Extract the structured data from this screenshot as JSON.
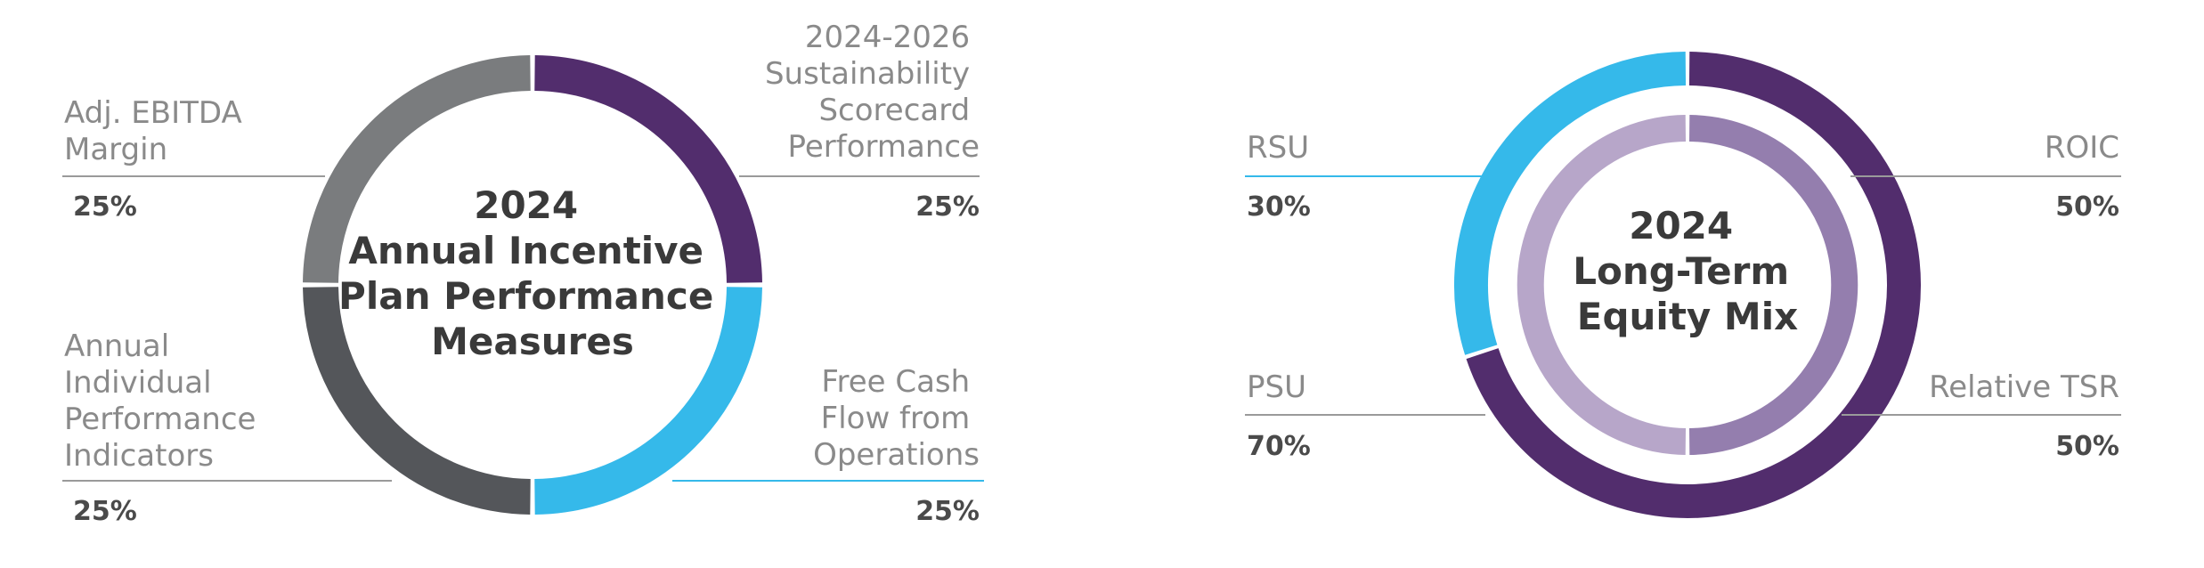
{
  "chart_data": [
    {
      "type": "pie",
      "title_lines": [
        "2024",
        "Annual Incentive",
        "Plan Performance",
        "Measures"
      ],
      "slices": [
        {
          "label_lines": [
            "2024-2026",
            "Sustainability",
            "Scorecard",
            "Performance"
          ],
          "value": 25,
          "value_text": "25%",
          "color": "#522d6d"
        },
        {
          "label_lines": [
            "Free Cash",
            "Flow from",
            "Operations"
          ],
          "value": 25,
          "value_text": "25%",
          "color": "#35b9ea"
        },
        {
          "label_lines": [
            "Annual",
            "Individual",
            "Performance",
            "Indicators"
          ],
          "value": 25,
          "value_text": "25%",
          "color": "#54565a"
        },
        {
          "label_lines": [
            "Adj. EBITDA",
            "Margin"
          ],
          "value": 25,
          "value_text": "25%",
          "color": "#7a7c7e"
        }
      ]
    },
    {
      "type": "pie",
      "title_lines": [
        "2024",
        "Long-Term",
        "Equity Mix"
      ],
      "outer_ring": [
        {
          "label": "RSU",
          "value": 30,
          "value_text": "30%",
          "color": "#35b9ea"
        },
        {
          "label": "PSU",
          "value": 70,
          "value_text": "70%",
          "color": "#522d6d"
        }
      ],
      "inner_ring": [
        {
          "label": "ROIC",
          "value": 50,
          "value_text": "50%",
          "color": "#947eae"
        },
        {
          "label": "Relative TSR",
          "value": 50,
          "value_text": "50%",
          "color": "#b7a6c9"
        }
      ]
    }
  ]
}
